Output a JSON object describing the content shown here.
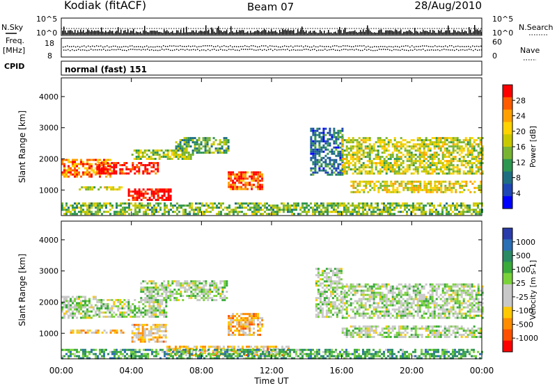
{
  "header": {
    "title": "Kodiak (fitACF)",
    "beam": "Beam 07",
    "date": "28/Aug/2010"
  },
  "strips": {
    "nsky_label": "N.Sky",
    "nsky_ticks": [
      "10^5",
      "10^0"
    ],
    "nsearch_label": "N.Search",
    "nsearch_ticks": [
      "10^5",
      "10^0"
    ],
    "freq_label": "Freq.",
    "freq_unit": "[MHz]",
    "freq_ticks": [
      "18",
      "8"
    ],
    "nave_label": "Nave",
    "nave_ticks": [
      "60",
      "0"
    ],
    "cpid_label": "CPID",
    "cpid_value": "normal (fast) 151"
  },
  "chart_data": [
    {
      "type": "heatmap",
      "name": "power",
      "ylabel": "Slant Range [km]",
      "ylim": [
        180,
        4600
      ],
      "yticks": [
        1000,
        2000,
        3000,
        4000
      ],
      "colorbar": {
        "label": "Power [dB]",
        "ticks": [
          "28",
          "24",
          "20",
          "16",
          "12",
          "8",
          "4"
        ],
        "colors": [
          "#ff0000",
          "#ff5a00",
          "#ffa000",
          "#ffd200",
          "#c8c800",
          "#78b432",
          "#2d9650",
          "#1e6e82",
          "#1e46b4",
          "#0000ff"
        ]
      },
      "regions": [
        {
          "t0": 0.0,
          "t1": 2.8,
          "r0": 1450,
          "r1": 2000,
          "level": 0.8
        },
        {
          "t0": 2.0,
          "t1": 5.5,
          "r0": 1500,
          "r1": 1900,
          "level": 0.95
        },
        {
          "t0": 4.0,
          "t1": 7.5,
          "r0": 2000,
          "r1": 2300,
          "level": 0.5
        },
        {
          "t0": 6.5,
          "t1": 9.5,
          "r0": 2200,
          "r1": 2700,
          "level": 0.4
        },
        {
          "t0": 3.8,
          "t1": 6.2,
          "r0": 700,
          "r1": 1050,
          "level": 1.0
        },
        {
          "t0": 1.0,
          "t1": 3.5,
          "r0": 1020,
          "r1": 1120,
          "level": 0.55
        },
        {
          "t0": 9.5,
          "t1": 11.5,
          "r0": 1000,
          "r1": 1600,
          "level": 0.85
        },
        {
          "t0": 14.2,
          "t1": 16.0,
          "r0": 1500,
          "r1": 3000,
          "level": 0.25
        },
        {
          "t0": 16.0,
          "t1": 24.0,
          "r0": 1500,
          "r1": 2700,
          "level": 0.55
        },
        {
          "t0": 16.5,
          "t1": 24.0,
          "r0": 900,
          "r1": 1300,
          "level": 0.6
        },
        {
          "t0": 0.0,
          "t1": 24.0,
          "r0": 200,
          "r1": 600,
          "level": 0.45
        }
      ]
    },
    {
      "type": "heatmap",
      "name": "velocity",
      "ylabel": "Slant Range [km]",
      "ylim": [
        180,
        4600
      ],
      "yticks": [
        1000,
        2000,
        3000,
        4000
      ],
      "colorbar": {
        "label": "Velocity [m s-1]",
        "ticks": [
          "1000",
          "500",
          "100",
          "25",
          "-25",
          "-100",
          "-500",
          "-1000"
        ],
        "colors": [
          "#2a3caa",
          "#2a6eb4",
          "#2a8a64",
          "#3aaa3a",
          "#7ad23a",
          "#c8c8c8",
          "#c8c8c8",
          "#ffc800",
          "#ff8c00",
          "#ff5000",
          "#ff0000"
        ]
      },
      "regions": [
        {
          "t0": 0.0,
          "t1": 2.0,
          "r0": 1500,
          "r1": 2200,
          "level": 0.52
        },
        {
          "t0": 2.0,
          "t1": 6.0,
          "r0": 1550,
          "r1": 2100,
          "level": 0.52
        },
        {
          "t0": 4.5,
          "t1": 9.5,
          "r0": 2050,
          "r1": 2700,
          "level": 0.52
        },
        {
          "t0": 0.5,
          "t1": 3.5,
          "r0": 1020,
          "r1": 1120,
          "level": 0.35
        },
        {
          "t0": 4.0,
          "t1": 6.0,
          "r0": 750,
          "r1": 1300,
          "level": 0.35
        },
        {
          "t0": 6.0,
          "t1": 13.0,
          "r0": 300,
          "r1": 600,
          "level": 0.35
        },
        {
          "t0": 9.5,
          "t1": 11.5,
          "r0": 950,
          "r1": 1650,
          "level": 0.32
        },
        {
          "t0": 14.5,
          "t1": 16.0,
          "r0": 1500,
          "r1": 3100,
          "level": 0.52
        },
        {
          "t0": 16.0,
          "t1": 24.0,
          "r0": 1500,
          "r1": 2600,
          "level": 0.52
        },
        {
          "t0": 16.0,
          "t1": 24.0,
          "r0": 900,
          "r1": 1250,
          "level": 0.52
        },
        {
          "t0": 0.0,
          "t1": 24.0,
          "r0": 200,
          "r1": 500,
          "level": 0.7
        }
      ]
    }
  ],
  "x_axis": {
    "ticks": [
      "00:00",
      "04:00",
      "08:00",
      "12:00",
      "16:00",
      "20:00",
      "00:00"
    ],
    "label": "Time UT",
    "range_hours": [
      0,
      24
    ]
  }
}
